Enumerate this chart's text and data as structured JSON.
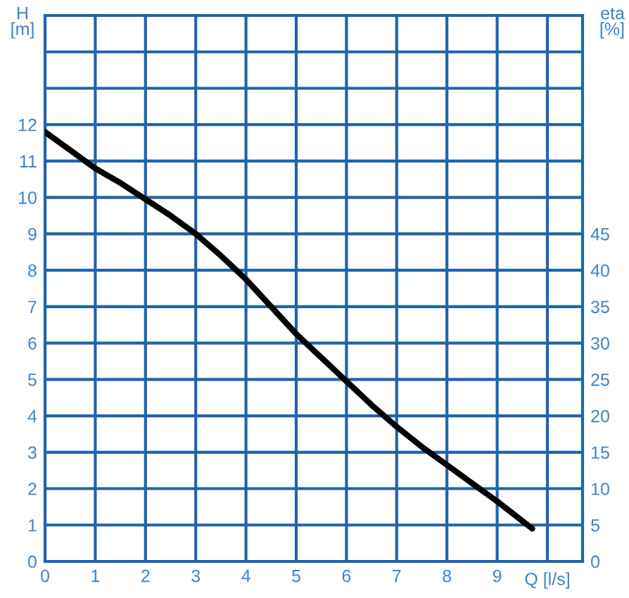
{
  "chart_data": {
    "type": "line",
    "xlabel": "Q [l/s]",
    "ylabel": "H\n[m]",
    "y2label": "eta\n[%]",
    "x": [
      0,
      0.5,
      1,
      1.5,
      2,
      2.5,
      3,
      3.5,
      4,
      4.5,
      5,
      5.5,
      6,
      6.5,
      7,
      7.5,
      8,
      8.5,
      9,
      9.7
    ],
    "series": [
      {
        "color": "#000000",
        "values": [
          11.8,
          11.3,
          10.8,
          10.4,
          9.95,
          9.5,
          9.0,
          8.4,
          7.75,
          7.0,
          6.25,
          5.6,
          4.95,
          4.3,
          3.7,
          3.15,
          2.65,
          2.15,
          1.65,
          0.9
        ]
      }
    ],
    "xlim": [
      0,
      10.7
    ],
    "xticks": [
      0,
      1,
      2,
      3,
      4,
      5,
      6,
      7,
      8,
      9,
      {
        "value": 10,
        "label": null
      }
    ],
    "ylim": [
      0,
      15
    ],
    "yticks": [
      0,
      1,
      2,
      3,
      4,
      5,
      6,
      7,
      8,
      9,
      10,
      11,
      12,
      {
        "value": 13,
        "label": null
      },
      {
        "value": 14,
        "label": null
      }
    ],
    "y2lim": [
      0,
      75
    ],
    "y2ticks": [
      0,
      5,
      10,
      15,
      20,
      25,
      30,
      35,
      40,
      45
    ],
    "grid": true,
    "marker": "none",
    "line_style": "solid",
    "legend": false
  }
}
